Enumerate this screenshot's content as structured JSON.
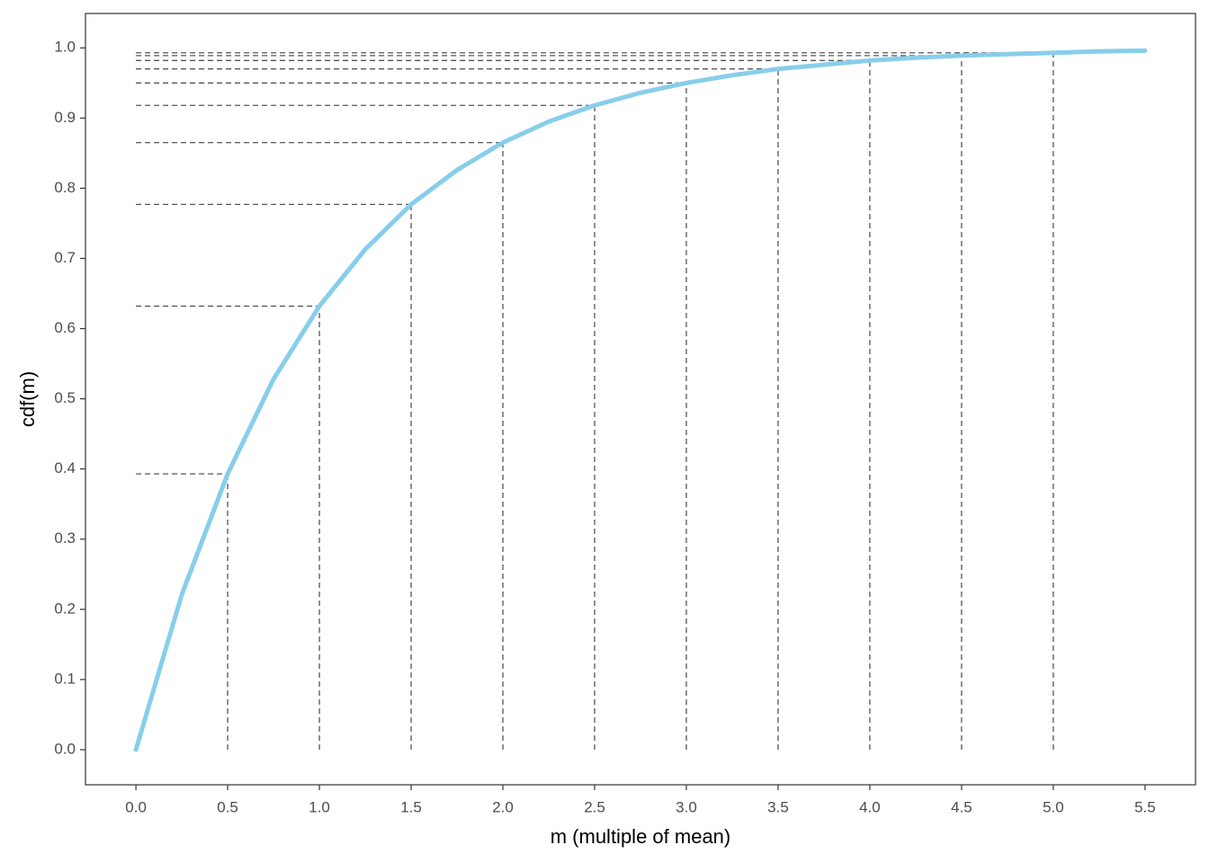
{
  "chart_data": {
    "type": "line",
    "x_label": "m (multiple of mean)",
    "y_label": "cdf(m)",
    "x": [
      0,
      0.25,
      0.5,
      0.75,
      1,
      1.25,
      1.5,
      1.75,
      2,
      2.25,
      2.5,
      2.75,
      3,
      3.25,
      3.5,
      3.75,
      4,
      4.25,
      4.5,
      4.75,
      5,
      5.25,
      5.5
    ],
    "series": [
      {
        "color": "#87ceeb",
        "values": [
          0,
          0.221,
          0.393,
          0.528,
          0.632,
          0.713,
          0.777,
          0.826,
          0.865,
          0.895,
          0.918,
          0.936,
          0.95,
          0.961,
          0.97,
          0.976,
          0.982,
          0.986,
          0.989,
          0.991,
          0.993,
          0.995,
          0.996
        ]
      }
    ],
    "reference_lines": {
      "color": "#555555",
      "x": [
        0.5,
        1,
        1.5,
        2,
        2.5,
        3,
        3.5,
        4,
        4.5,
        5
      ],
      "y": [
        0.393,
        0.632,
        0.777,
        0.865,
        0.918,
        0.95,
        0.97,
        0.982,
        0.989,
        0.993
      ]
    },
    "xlim": [
      -0.275,
      5.775
    ],
    "ylim": [
      -0.05,
      1.049
    ],
    "xticks": [
      {
        "value": 0,
        "label": "0.0"
      },
      0.5,
      {
        "value": 1,
        "label": "1.0"
      },
      1.5,
      {
        "value": 2,
        "label": "2.0"
      },
      2.5,
      {
        "value": 3,
        "label": "3.0"
      },
      3.5,
      {
        "value": 4,
        "label": "4.0"
      },
      4.5,
      {
        "value": 5,
        "label": "5.0"
      },
      5.5
    ],
    "yticks": [
      {
        "value": 0,
        "label": "0.0"
      },
      0.1,
      0.2,
      0.3,
      0.4,
      0.5,
      0.6,
      0.7,
      0.8,
      0.9,
      {
        "value": 1,
        "label": "1.0"
      }
    ],
    "grid": false
  }
}
